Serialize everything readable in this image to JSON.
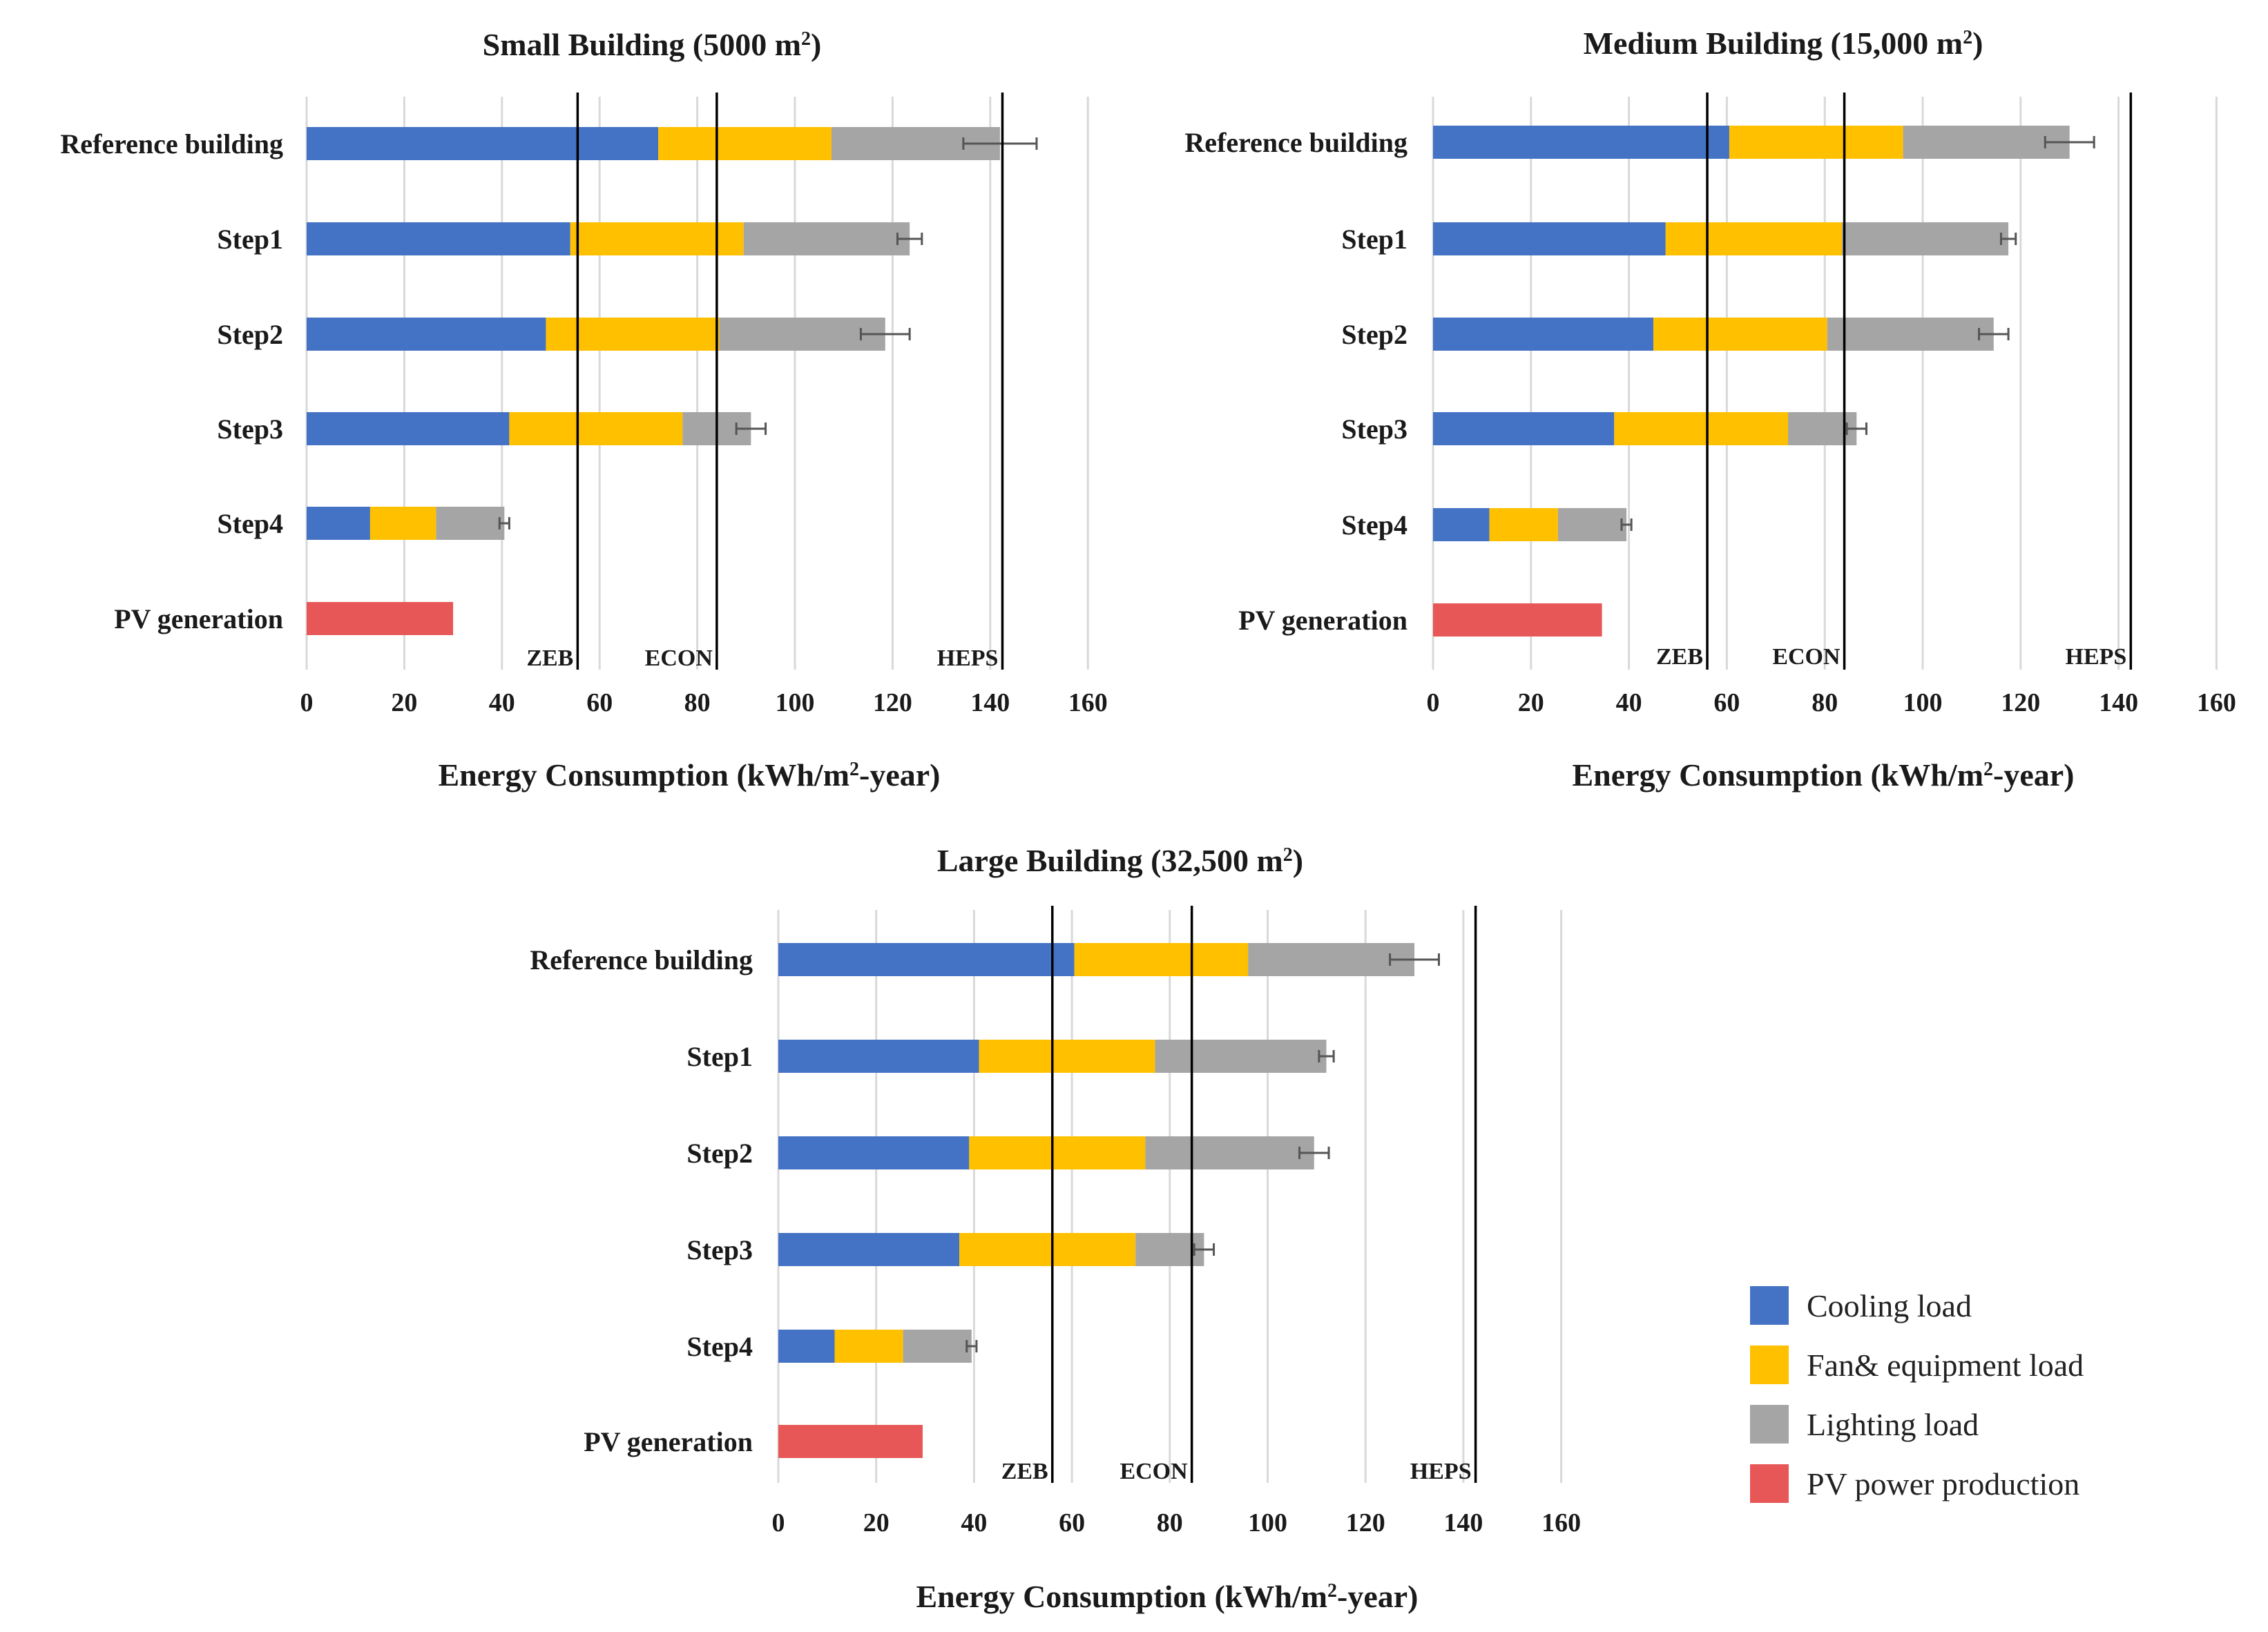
{
  "colors": {
    "cooling": "#4472C4",
    "fan": "#FFC000",
    "lighting": "#A5A5A5",
    "pv": "#E85757",
    "grid": "#D9D9D9",
    "refline": "#000000",
    "text": "#1a1a1a"
  },
  "legend": [
    {
      "key": "cooling",
      "label": "Cooling  load"
    },
    {
      "key": "fan",
      "label": "Fan&  equipment  load"
    },
    {
      "key": "lighting",
      "label": "Lighting  load"
    },
    {
      "key": "pv",
      "label": "PV  power  production"
    }
  ],
  "chart_data": [
    {
      "type": "bar",
      "stacked": true,
      "orientation": "horizontal",
      "title_main": "Small Building (5000 m",
      "title_sup": "2",
      "title_end": ")",
      "xlabel_main": "Energy Consumption  (kWh/m",
      "xlabel_sup": "2",
      "xlabel_end": "-year)",
      "xlim": [
        0,
        160
      ],
      "xticks": [
        "0",
        "20",
        "40",
        "60",
        "80",
        "100",
        "120",
        "140",
        "160"
      ],
      "grid": true,
      "categories": [
        "Reference building",
        "Step1",
        "Step2",
        "Step3",
        "Step4",
        "PV generation"
      ],
      "series": [
        {
          "name": "Cooling load",
          "key": "cooling",
          "values": [
            72,
            54,
            49,
            41.5,
            13,
            0
          ]
        },
        {
          "name": "Fan& equipment load",
          "key": "fan",
          "values": [
            35.5,
            35.5,
            35.5,
            35.5,
            13.5,
            0
          ]
        },
        {
          "name": "Lighting load",
          "key": "lighting",
          "values": [
            34.5,
            34,
            34,
            14,
            14,
            0
          ]
        },
        {
          "name": "PV power production",
          "key": "pv",
          "values": [
            0,
            0,
            0,
            0,
            0,
            30
          ]
        }
      ],
      "error": [
        7.5,
        2.5,
        5,
        3,
        1,
        0
      ],
      "reference_lines": [
        {
          "label": "ZEB",
          "value": 55.5
        },
        {
          "label": "ECON",
          "value": 84
        },
        {
          "label": "HEPS",
          "value": 142.5
        }
      ]
    },
    {
      "type": "bar",
      "stacked": true,
      "orientation": "horizontal",
      "title_main": "Medium Building (15,000 m",
      "title_sup": "2",
      "title_end": ")",
      "xlabel_main": "Energy Consumption  (kWh/m",
      "xlabel_sup": "2",
      "xlabel_end": "-year)",
      "xlim": [
        0,
        160
      ],
      "xticks": [
        "0",
        "20",
        "40",
        "60",
        "80",
        "100",
        "120",
        "140",
        "160"
      ],
      "grid": true,
      "categories": [
        "Reference building",
        "Step1",
        "Step2",
        "Step3",
        "Step4",
        "PV generation"
      ],
      "series": [
        {
          "name": "Cooling load",
          "key": "cooling",
          "values": [
            60.5,
            47.5,
            45,
            37,
            11.5,
            0
          ]
        },
        {
          "name": "Fan& equipment load",
          "key": "fan",
          "values": [
            35.5,
            36,
            35.5,
            35.5,
            14,
            0
          ]
        },
        {
          "name": "Lighting load",
          "key": "lighting",
          "values": [
            34,
            34,
            34,
            14,
            14,
            0
          ]
        },
        {
          "name": "PV power production",
          "key": "pv",
          "values": [
            0,
            0,
            0,
            0,
            0,
            34.5
          ]
        }
      ],
      "error": [
        5,
        1.5,
        3,
        2,
        1,
        0
      ],
      "reference_lines": [
        {
          "label": "ZEB",
          "value": 56
        },
        {
          "label": "ECON",
          "value": 84
        },
        {
          "label": "HEPS",
          "value": 142.5
        }
      ]
    },
    {
      "type": "bar",
      "stacked": true,
      "orientation": "horizontal",
      "title_main": "Large Building (32,500 m",
      "title_sup": "2",
      "title_end": ")",
      "xlabel_main": "Energy Consumption  (kWh/m",
      "xlabel_sup": "2",
      "xlabel_end": "-year)",
      "xlim": [
        0,
        160
      ],
      "xticks": [
        "0",
        "20",
        "40",
        "60",
        "80",
        "100",
        "120",
        "140",
        "160"
      ],
      "grid": true,
      "categories": [
        "Reference building",
        "Step1",
        "Step2",
        "Step3",
        "Step4",
        "PV generation"
      ],
      "series": [
        {
          "name": "Cooling load",
          "key": "cooling",
          "values": [
            60.5,
            41,
            39,
            37,
            11.5,
            0
          ]
        },
        {
          "name": "Fan& equipment load",
          "key": "fan",
          "values": [
            35.5,
            36,
            36,
            36,
            14,
            0
          ]
        },
        {
          "name": "Lighting load",
          "key": "lighting",
          "values": [
            34,
            35,
            34.5,
            14,
            14,
            0
          ]
        },
        {
          "name": "PV power production",
          "key": "pv",
          "values": [
            0,
            0,
            0,
            0,
            0,
            29.5
          ]
        }
      ],
      "error": [
        5,
        1.5,
        3,
        2,
        1,
        0
      ],
      "reference_lines": [
        {
          "label": "ZEB",
          "value": 56
        },
        {
          "label": "ECON",
          "value": 84.5
        },
        {
          "label": "HEPS",
          "value": 142.5
        }
      ]
    }
  ]
}
